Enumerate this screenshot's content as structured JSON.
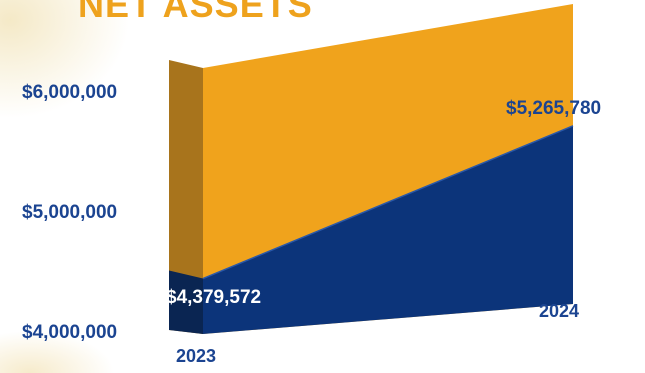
{
  "chart_data": {
    "type": "area",
    "title": "NET ASSETS",
    "categories": [
      "2023",
      "2024"
    ],
    "series": [
      {
        "values": [
          4379572,
          5265780
        ]
      }
    ],
    "data_labels": [
      "$4,379,572",
      "$5,265,780"
    ],
    "ytick_labels": [
      "$6,000,000",
      "$5,000,000",
      "$4,000,000"
    ],
    "yticks": [
      6000000,
      5000000,
      4000000
    ],
    "ylim": [
      3900000,
      6200000
    ],
    "colors": {
      "area": "#0c347a",
      "area_dark": "#0a2552",
      "back_wall": "#f0a31c",
      "back_wall_top": "#f3b04a",
      "side_wall": "#a8741c",
      "tick_text": "#1b4491",
      "title": "#eea21d",
      "label_light": "#ffffff",
      "label_dark": "#1b4491"
    }
  }
}
